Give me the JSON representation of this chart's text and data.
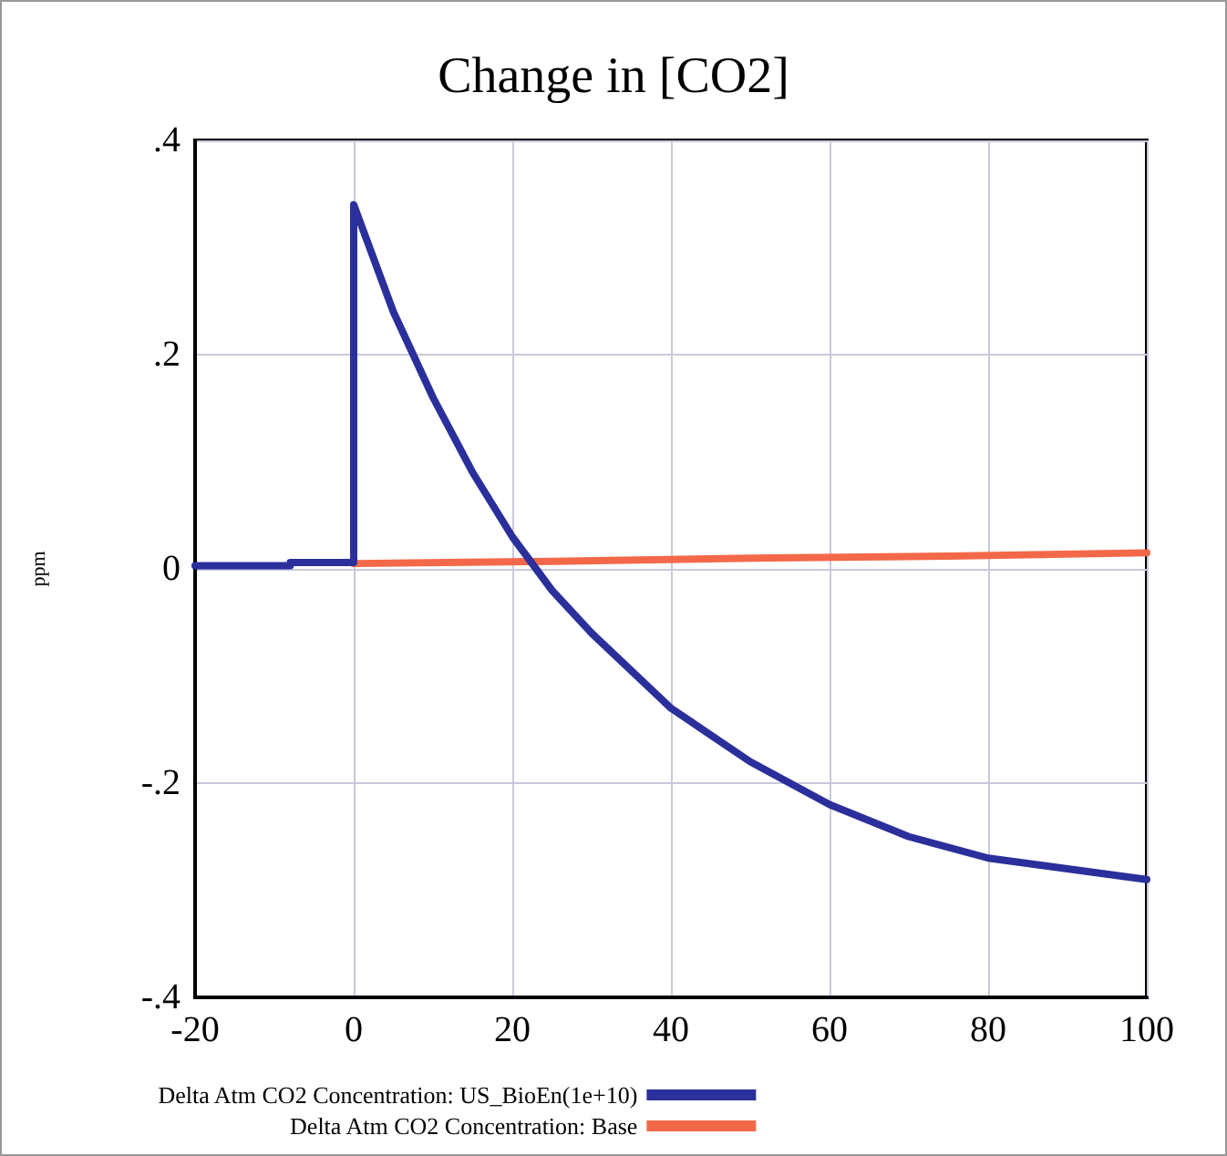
{
  "chart_data": {
    "type": "line",
    "title": "Change in [CO2]",
    "ylabel": "ppm",
    "xlim": [
      -20,
      100
    ],
    "xticks": [
      -20,
      0,
      20,
      40,
      60,
      80,
      100
    ],
    "ylim": [
      -0.4,
      0.4
    ],
    "yticks": [
      {
        "value": -0.4,
        "label": "-.4"
      },
      {
        "value": -0.2,
        "label": "-.2"
      },
      {
        "value": 0,
        "label": "0"
      },
      {
        "value": 0.2,
        "label": ".2"
      },
      {
        "value": 0.4,
        "label": ".4"
      }
    ],
    "grid": true,
    "legend": "bottom",
    "marker": "none",
    "line_style": "solid",
    "series": [
      {
        "name": "Delta Atm CO2 Concentration: US_BioEn(1e+10)",
        "color": "#2b2f9b",
        "x": [
          -20,
          -8,
          -8,
          0,
          0,
          5,
          10,
          15,
          20,
          25,
          30,
          40,
          50,
          60,
          70,
          80,
          90,
          100
        ],
        "values": [
          0.003,
          0.003,
          0.006,
          0.006,
          0.34,
          0.24,
          0.16,
          0.09,
          0.03,
          -0.02,
          -0.06,
          -0.13,
          -0.18,
          -0.22,
          -0.25,
          -0.27,
          -0.28,
          -0.29
        ]
      },
      {
        "name": "Delta Atm CO2 Concentration: Base",
        "color": "#f4684a",
        "x": [
          0,
          25,
          50,
          75,
          100
        ],
        "values": [
          0.005,
          0.007,
          0.01,
          0.012,
          0.015
        ]
      }
    ]
  }
}
